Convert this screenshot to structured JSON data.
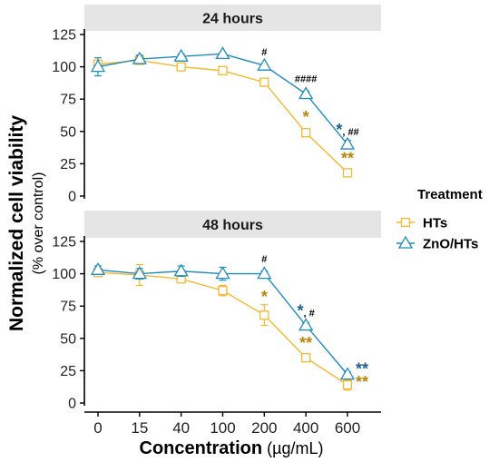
{
  "chart_data": {
    "type": "line",
    "layout": "faceted",
    "xlabel": "Concentration",
    "xlabel_unit": "(µg/mL)",
    "ylabel": "Normalized cell viability",
    "ylabel_sub": "(% over control)",
    "x_categories": [
      "0",
      "15",
      "40",
      "100",
      "200",
      "400",
      "600"
    ],
    "y_ticks": [
      "0",
      "25",
      "50",
      "75",
      "100",
      "125"
    ],
    "ylim": [
      0,
      125
    ],
    "grid": false,
    "legend": {
      "title": "Treatment",
      "position": "right",
      "items": [
        {
          "label": "HTs",
          "color": "#F5B82E",
          "marker": "square"
        },
        {
          "label": "ZnO/HTs",
          "color": "#1F8BBF",
          "marker": "triangle"
        }
      ]
    },
    "panels": [
      {
        "title": "24 hours",
        "series": [
          {
            "name": "HTs",
            "color": "#F5B82E",
            "marker": "square",
            "values": [
              102,
              105,
              100,
              97,
              88,
              49,
              18
            ],
            "errors": [
              3,
              2,
              3,
              2,
              3,
              2,
              2
            ]
          },
          {
            "name": "ZnO/HTs",
            "color": "#1F8BBF",
            "marker": "triangle",
            "values": [
              100,
              106,
              108,
              110,
              101,
              79,
              40
            ],
            "errors": [
              7,
              3,
              2,
              1,
              1,
              2,
              3
            ]
          }
        ],
        "annotations": [
          {
            "x": "200",
            "y": 109,
            "parts": [
              {
                "text": "#",
                "color": "#000000"
              }
            ]
          },
          {
            "x": "400",
            "y": 88,
            "parts": [
              {
                "text": "####",
                "color": "#000000"
              }
            ]
          },
          {
            "x": "400",
            "y": 57,
            "parts": [
              {
                "text": "*",
                "color": "#B8860B"
              }
            ]
          },
          {
            "x": "600",
            "y": 47,
            "parts": [
              {
                "text": "*",
                "color": "#1F5F8B"
              },
              {
                "text": ", ##",
                "color": "#000000"
              }
            ]
          },
          {
            "x": "600",
            "y": 25,
            "parts": [
              {
                "text": "**",
                "color": "#B8860B"
              }
            ]
          }
        ]
      },
      {
        "title": "48 hours",
        "series": [
          {
            "name": "HTs",
            "color": "#F5B82E",
            "marker": "square",
            "values": [
              101,
              99,
              96,
              87,
              68,
              35,
              14
            ],
            "errors": [
              2,
              8,
              2,
              4,
              8,
              2,
              4
            ]
          },
          {
            "name": "ZnO/HTs",
            "color": "#1F8BBF",
            "marker": "triangle",
            "values": [
              103,
              100,
              102,
              100,
              100,
              60,
              22
            ],
            "errors": [
              3,
              4,
              4,
              5,
              2,
              2,
              2
            ]
          }
        ],
        "annotations": [
          {
            "x": "200",
            "y": 109,
            "parts": [
              {
                "text": "#",
                "color": "#000000"
              }
            ]
          },
          {
            "x": "200",
            "y": 78,
            "parts": [
              {
                "text": "*",
                "color": "#B8860B"
              }
            ]
          },
          {
            "x": "400",
            "y": 67,
            "parts": [
              {
                "text": "*",
                "color": "#1F5F8B"
              },
              {
                "text": ", #",
                "color": "#000000"
              }
            ]
          },
          {
            "x": "400",
            "y": 42,
            "parts": [
              {
                "text": "**",
                "color": "#B8860B"
              }
            ]
          },
          {
            "x": "600",
            "y": 22,
            "side": "right",
            "parts": [
              {
                "text": "**",
                "color": "#1F5F8B"
              }
            ]
          },
          {
            "x": "600",
            "y": 12,
            "side": "right",
            "parts": [
              {
                "text": "**",
                "color": "#B8860B"
              }
            ]
          }
        ]
      }
    ]
  }
}
